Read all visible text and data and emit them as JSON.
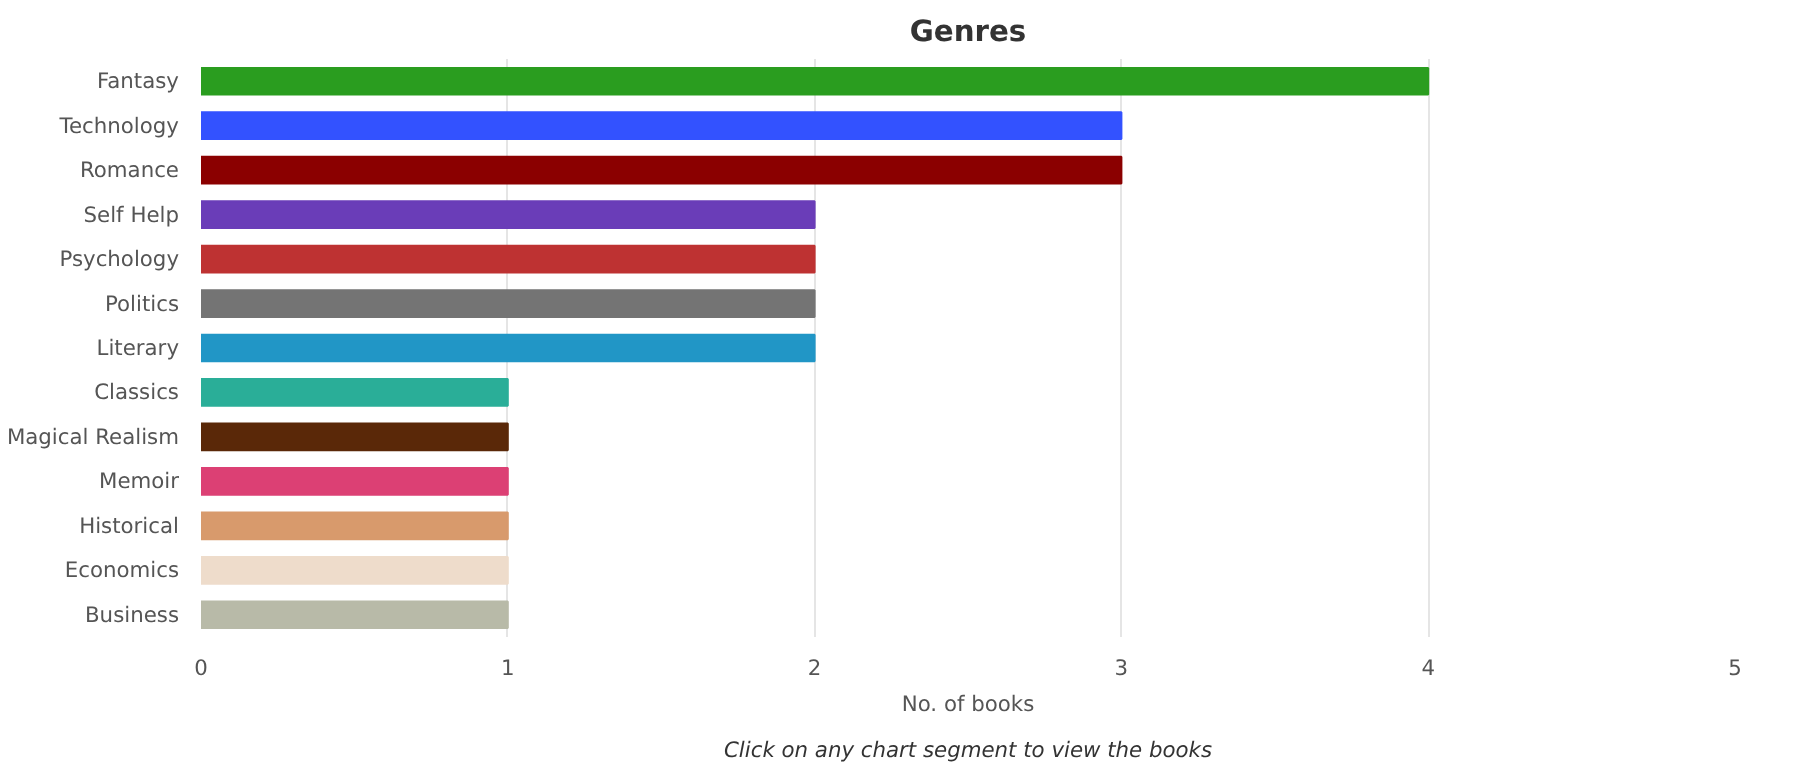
{
  "chart_data": {
    "type": "bar",
    "orientation": "horizontal",
    "title": "Genres",
    "xlabel": "No. of books",
    "categories": [
      "Fantasy",
      "Technology",
      "Romance",
      "Self Help",
      "Psychology",
      "Politics",
      "Literary",
      "Classics",
      "Magical Realism",
      "Memoir",
      "Historical",
      "Economics",
      "Business"
    ],
    "values": [
      4,
      3,
      3,
      2,
      2,
      2,
      2,
      1,
      1,
      1,
      1,
      1,
      1
    ],
    "colors": [
      "#2a9d1f",
      "#3352ff",
      "#8b0000",
      "#6a3db8",
      "#be3232",
      "#747474",
      "#2196c6",
      "#2aae98",
      "#5a2808",
      "#dc4074",
      "#d89a6c",
      "#eedccb",
      "#b8baa8"
    ],
    "xlim": [
      0,
      5
    ],
    "xticks": [
      0,
      1,
      2,
      3,
      4,
      5
    ],
    "grid": "x",
    "annotations": [
      "Click on any chart segment to view the books"
    ]
  }
}
